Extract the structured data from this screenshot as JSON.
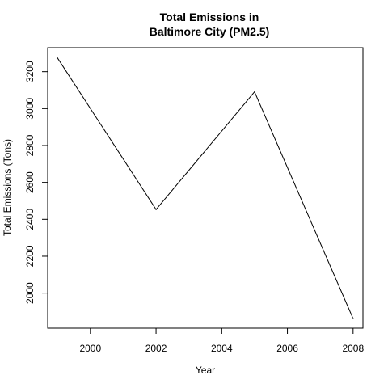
{
  "chart_data": {
    "type": "line",
    "title": [
      "Total Emissions in",
      "Baltimore City (PM2.5)"
    ],
    "xlabel": "Year",
    "ylabel": "Total Emissions (Tons)",
    "x": [
      1999,
      2002,
      2005,
      2008
    ],
    "y": [
      3274,
      2453,
      3091,
      1862
    ],
    "xticks": [
      2000,
      2002,
      2004,
      2006,
      2008
    ],
    "yticks": [
      2000,
      2200,
      2400,
      2600,
      2800,
      3000,
      3200
    ],
    "xlim": [
      1998.7,
      2008.3
    ],
    "ylim": [
      1810,
      3330
    ],
    "line_color": "#000000",
    "grid": false,
    "legend": "none"
  }
}
